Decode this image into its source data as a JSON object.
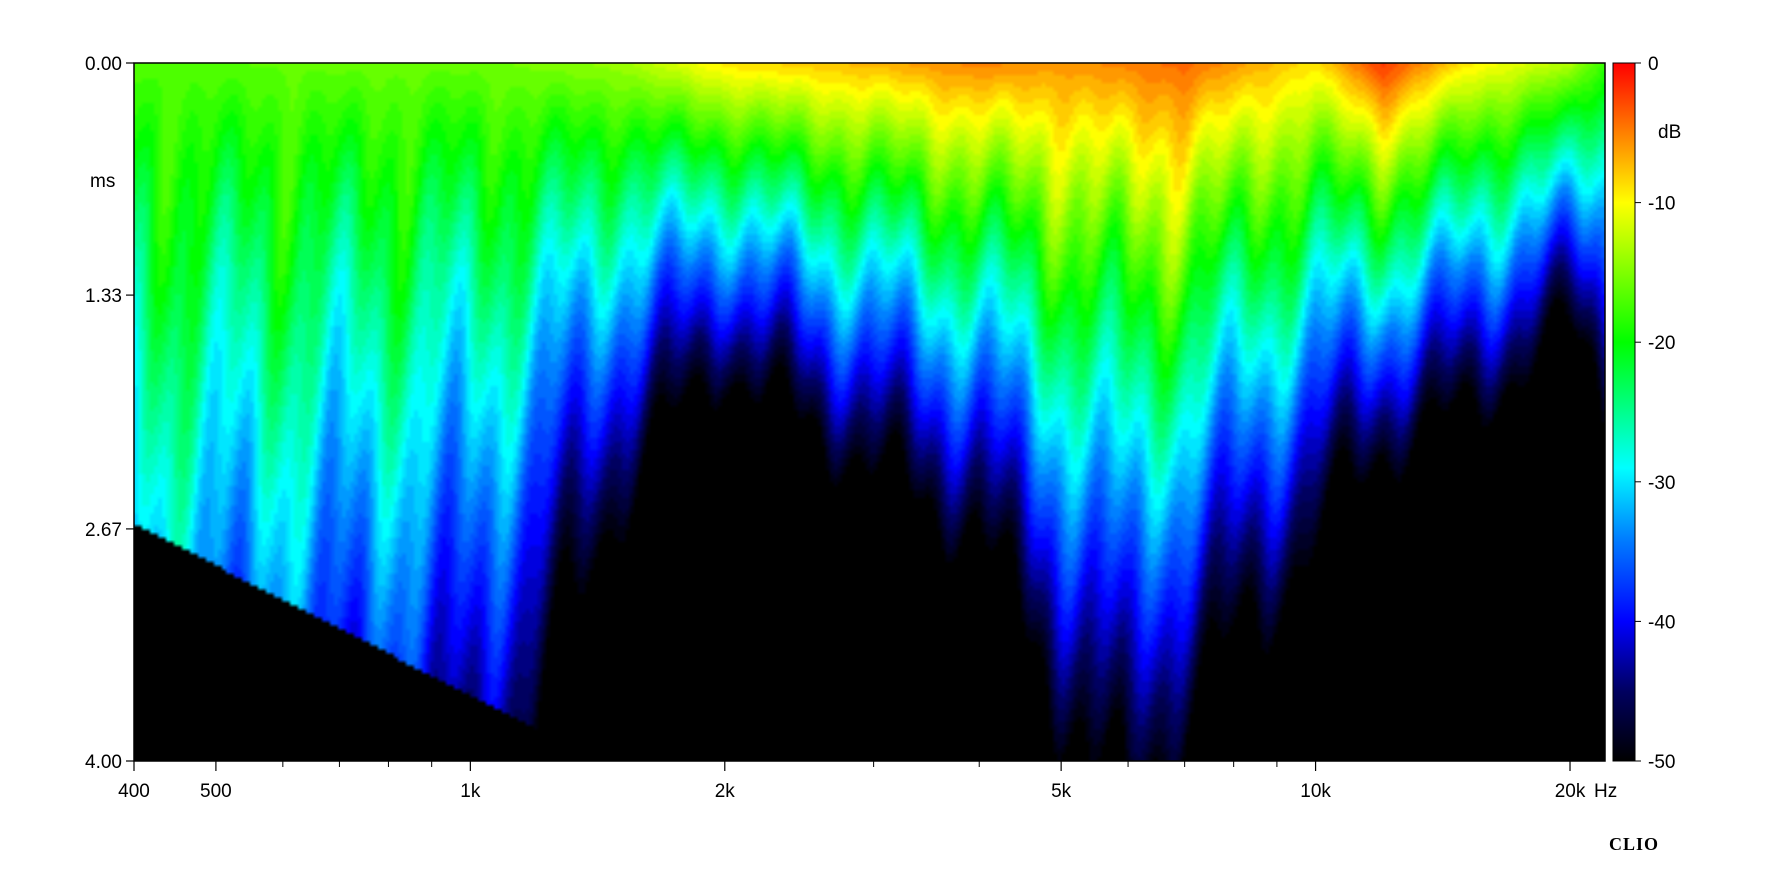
{
  "chart_data": {
    "type": "heatmap",
    "title": "",
    "subtitle": "",
    "xlabel": "Hz",
    "ylabel": "ms",
    "colorbar_label": "dB",
    "xscale": "log",
    "xlim": [
      400,
      22000
    ],
    "ylim": [
      0.0,
      4.0
    ],
    "y_reversed": true,
    "zlim": [
      -50,
      0
    ],
    "x_ticks": [
      {
        "value": 400,
        "label": "400"
      },
      {
        "value": 500,
        "label": "500"
      },
      {
        "value": 1000,
        "label": "1k"
      },
      {
        "value": 2000,
        "label": "2k"
      },
      {
        "value": 5000,
        "label": "5k"
      },
      {
        "value": 10000,
        "label": "10k"
      },
      {
        "value": 20000,
        "label": "20k"
      }
    ],
    "x_minor_ticks": [
      600,
      700,
      800,
      900,
      3000,
      4000,
      6000,
      7000,
      8000,
      9000
    ],
    "y_ticks": [
      {
        "value": 0.0,
        "label": "0.00"
      },
      {
        "value": 1.33,
        "label": "1.33"
      },
      {
        "value": 2.67,
        "label": "2.67"
      },
      {
        "value": 4.0,
        "label": "4.00"
      }
    ],
    "colorbar_ticks": [
      {
        "value": 0,
        "label": "0"
      },
      {
        "value": -10,
        "label": "-10"
      },
      {
        "value": -20,
        "label": "-20"
      },
      {
        "value": -30,
        "label": "-30"
      },
      {
        "value": -40,
        "label": "-40"
      },
      {
        "value": -50,
        "label": "-50"
      }
    ],
    "colormap": [
      "#000000",
      "#000060",
      "#0000ff",
      "#0080ff",
      "#00ffff",
      "#00ff00",
      "#ffff00",
      "#ff8000",
      "#ff0000"
    ],
    "initial_level_by_freq": [
      {
        "f": 400,
        "db": -17
      },
      {
        "f": 700,
        "db": -16
      },
      {
        "f": 1000,
        "db": -16
      },
      {
        "f": 1500,
        "db": -14
      },
      {
        "f": 2000,
        "db": -9
      },
      {
        "f": 3000,
        "db": -7
      },
      {
        "f": 4000,
        "db": -5
      },
      {
        "f": 5000,
        "db": -6
      },
      {
        "f": 7000,
        "db": -4
      },
      {
        "f": 10000,
        "db": -9
      },
      {
        "f": 12000,
        "db": -2
      },
      {
        "f": 15000,
        "db": -9
      },
      {
        "f": 20000,
        "db": -13
      },
      {
        "f": 22000,
        "db": -18
      }
    ],
    "decay_time_to_minus30db_ms": [
      {
        "f": 400,
        "ms": 2.6
      },
      {
        "f": 1000,
        "ms": 2.0
      },
      {
        "f": 1500,
        "ms": 1.1
      },
      {
        "f": 2000,
        "ms": 0.9
      },
      {
        "f": 4000,
        "ms": 1.5
      },
      {
        "f": 6000,
        "ms": 2.4
      },
      {
        "f": 10000,
        "ms": 1.4
      },
      {
        "f": 12000,
        "ms": 1.3
      },
      {
        "f": 20000,
        "ms": 0.7
      }
    ]
  },
  "branding": {
    "logo": "CLIO"
  }
}
